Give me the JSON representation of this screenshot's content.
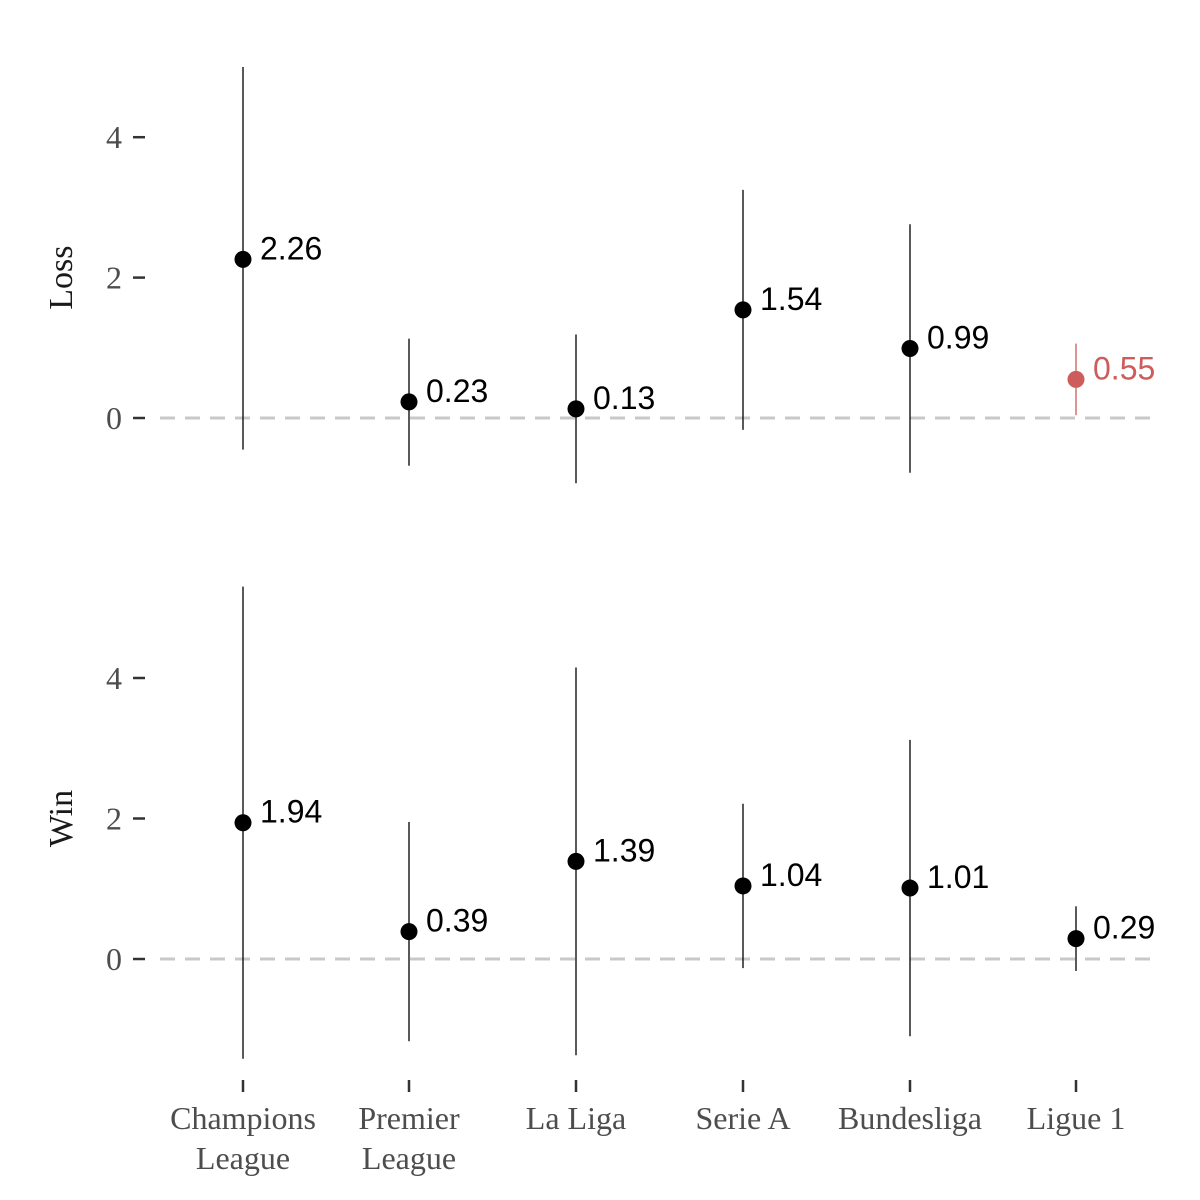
{
  "colors": {
    "point": "#000000",
    "highlight": "#cd5c5c",
    "reference_line": "#c8c8c8",
    "axis_text": "#4d4d4d"
  },
  "chart_data": {
    "type": "scatter",
    "subtype": "point-range (estimate with interval), faceted by row",
    "categories": [
      "Champions\nLeague",
      "Premier\nLeague",
      "La Liga",
      "Serie A",
      "Bundesliga",
      "Ligue 1"
    ],
    "facets": [
      {
        "label": "Loss",
        "ylim": [
          -1.5,
          5.3
        ],
        "yticks": [
          0,
          2,
          4
        ],
        "reference_line": 0,
        "points": [
          {
            "category": "Champions\nLeague",
            "value": 2.26,
            "low": -0.45,
            "high": 5.0,
            "label": "2.26",
            "highlight": false
          },
          {
            "category": "Premier\nLeague",
            "value": 0.23,
            "low": -0.68,
            "high": 1.13,
            "label": "0.23",
            "highlight": false
          },
          {
            "category": "La Liga",
            "value": 0.13,
            "low": -0.93,
            "high": 1.19,
            "label": "0.13",
            "highlight": false
          },
          {
            "category": "Serie A",
            "value": 1.54,
            "low": -0.17,
            "high": 3.25,
            "label": "1.54",
            "highlight": false
          },
          {
            "category": "Bundesliga",
            "value": 0.99,
            "low": -0.78,
            "high": 2.76,
            "label": "0.99",
            "highlight": false
          },
          {
            "category": "Ligue 1",
            "value": 0.55,
            "low": 0.04,
            "high": 1.06,
            "label": "0.55",
            "highlight": true
          }
        ]
      },
      {
        "label": "Win",
        "ylim": [
          -1.5,
          5.3
        ],
        "yticks": [
          0,
          2,
          4
        ],
        "reference_line": 0,
        "points": [
          {
            "category": "Champions\nLeague",
            "value": 1.94,
            "low": -1.42,
            "high": 5.3,
            "label": "1.94",
            "highlight": false
          },
          {
            "category": "Premier\nLeague",
            "value": 0.39,
            "low": -1.17,
            "high": 1.95,
            "label": "0.39",
            "highlight": false
          },
          {
            "category": "La Liga",
            "value": 1.39,
            "low": -1.37,
            "high": 4.15,
            "label": "1.39",
            "highlight": false
          },
          {
            "category": "Serie A",
            "value": 1.04,
            "low": -0.13,
            "high": 2.21,
            "label": "1.04",
            "highlight": false
          },
          {
            "category": "Bundesliga",
            "value": 1.01,
            "low": -1.1,
            "high": 3.12,
            "label": "1.01",
            "highlight": false
          },
          {
            "category": "Ligue 1",
            "value": 0.29,
            "low": -0.17,
            "high": 0.75,
            "label": "0.29",
            "highlight": false
          }
        ]
      }
    ],
    "title": "",
    "xlabel": "",
    "ylabel": "",
    "grid": false,
    "legend": "none"
  }
}
